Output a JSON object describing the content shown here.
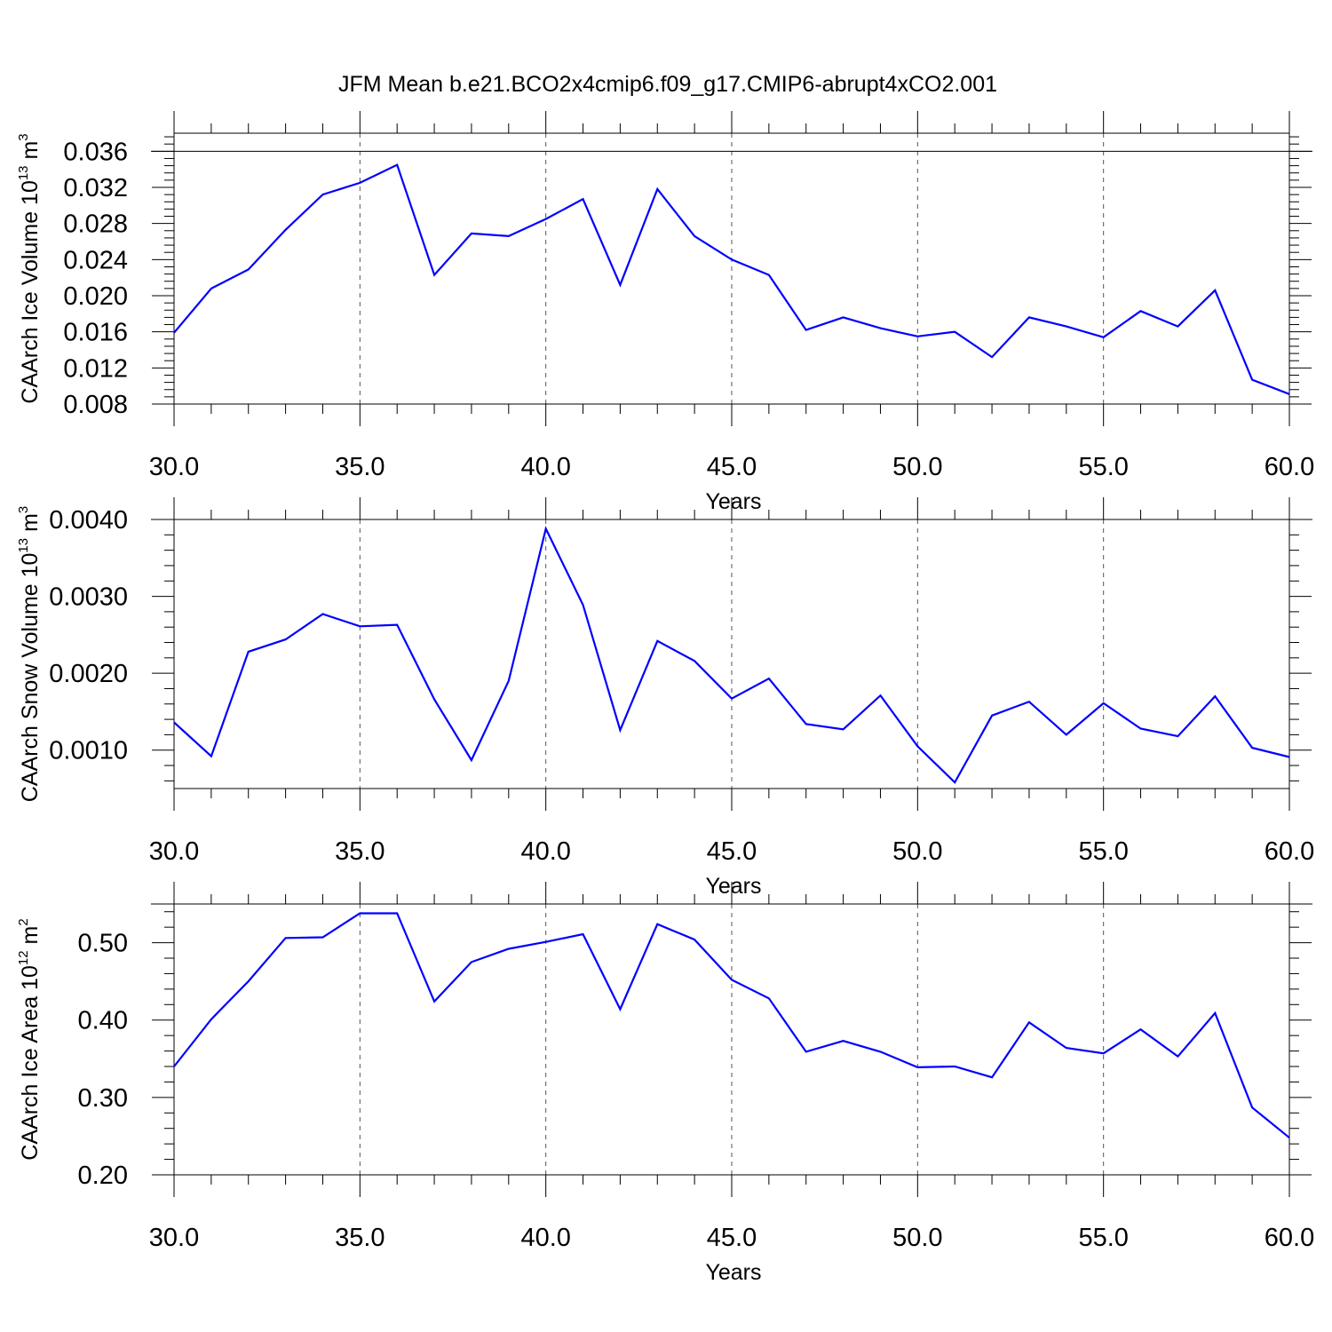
{
  "figure": {
    "title": "JFM Mean b.e21.BCO2x4cmip6.f09_g17.CMIP6-abrupt4xCO2.001"
  },
  "colors": {
    "series": "#0000ff",
    "axes": "#000000",
    "grid": "#555555"
  },
  "chart_data": [
    {
      "type": "line",
      "id": "ice_volume",
      "ylabel": {
        "main": "CAArch Ice Volume 10",
        "exp": "13",
        "unit": " m",
        "unit_exp": "3"
      },
      "xlabel": "Years",
      "xlim": [
        30,
        60
      ],
      "ylim": [
        0.008,
        0.038
      ],
      "x_ticks": [
        30,
        35,
        40,
        45,
        50,
        55,
        60
      ],
      "x_tick_labels": [
        "30.0",
        "35.0",
        "40.0",
        "45.0",
        "50.0",
        "55.0",
        "60.0"
      ],
      "y_ticks": [
        0.008,
        0.012,
        0.016,
        0.02,
        0.024,
        0.028,
        0.032,
        0.036
      ],
      "y_tick_labels": [
        "0.008",
        "0.012",
        "0.016",
        "0.020",
        "0.024",
        "0.028",
        "0.032",
        "0.036"
      ],
      "y_ref_line": 0.036,
      "grid": "vertical dashed at major x ticks",
      "x": [
        30,
        31,
        32,
        33,
        34,
        35,
        36,
        37,
        38,
        39,
        40,
        41,
        42,
        43,
        44,
        45,
        46,
        47,
        48,
        49,
        50,
        51,
        52,
        53,
        54,
        55,
        56,
        57,
        58,
        59,
        60
      ],
      "values": [
        0.0159,
        0.0208,
        0.0229,
        0.0273,
        0.0312,
        0.0325,
        0.0345,
        0.0223,
        0.0269,
        0.0266,
        0.0285,
        0.0307,
        0.0212,
        0.0318,
        0.0266,
        0.024,
        0.0223,
        0.0162,
        0.0176,
        0.0164,
        0.0155,
        0.016,
        0.0132,
        0.0176,
        0.0166,
        0.0154,
        0.0183,
        0.0166,
        0.0206,
        0.0107,
        0.0091
      ]
    },
    {
      "type": "line",
      "id": "snow_volume",
      "ylabel": {
        "main": "CAArch Snow Volume 10",
        "exp": "13",
        "unit": " m",
        "unit_exp": "3"
      },
      "xlabel": "Years",
      "xlim": [
        30,
        60
      ],
      "ylim": [
        0.0005,
        0.004
      ],
      "x_ticks": [
        30,
        35,
        40,
        45,
        50,
        55,
        60
      ],
      "x_tick_labels": [
        "30.0",
        "35.0",
        "40.0",
        "45.0",
        "50.0",
        "55.0",
        "60.0"
      ],
      "y_ticks": [
        0.001,
        0.002,
        0.003,
        0.004
      ],
      "y_tick_labels": [
        "0.0010",
        "0.0020",
        "0.0030",
        "0.0040"
      ],
      "y_ref_line": 0.004,
      "grid": "vertical dashed at major x ticks",
      "x": [
        30,
        31,
        32,
        33,
        34,
        35,
        36,
        37,
        38,
        39,
        40,
        41,
        42,
        43,
        44,
        45,
        46,
        47,
        48,
        49,
        50,
        51,
        52,
        53,
        54,
        55,
        56,
        57,
        58,
        59,
        60
      ],
      "values": [
        0.00136,
        0.00092,
        0.00228,
        0.00244,
        0.00277,
        0.00261,
        0.00263,
        0.00166,
        0.00087,
        0.0019,
        0.00388,
        0.00289,
        0.00126,
        0.00242,
        0.00216,
        0.00167,
        0.00193,
        0.00134,
        0.00127,
        0.00171,
        0.00105,
        0.00058,
        0.00145,
        0.00163,
        0.0012,
        0.00161,
        0.00128,
        0.00118,
        0.0017,
        0.00103,
        0.00091
      ]
    },
    {
      "type": "line",
      "id": "ice_area",
      "ylabel": {
        "main": "CAArch Ice Area 10",
        "exp": "12",
        "unit": " m",
        "unit_exp": "2"
      },
      "xlabel": "Years",
      "xlim": [
        30,
        60
      ],
      "ylim": [
        0.2,
        0.55
      ],
      "x_ticks": [
        30,
        35,
        40,
        45,
        50,
        55,
        60
      ],
      "x_tick_labels": [
        "30.0",
        "35.0",
        "40.0",
        "45.0",
        "50.0",
        "55.0",
        "60.0"
      ],
      "y_ticks": [
        0.2,
        0.3,
        0.4,
        0.5
      ],
      "y_tick_labels": [
        "0.20",
        "0.30",
        "0.40",
        "0.50"
      ],
      "y_ref_line": 0.55,
      "grid": "vertical dashed at major x ticks",
      "x": [
        30,
        31,
        32,
        33,
        34,
        35,
        36,
        37,
        38,
        39,
        40,
        41,
        42,
        43,
        44,
        45,
        46,
        47,
        48,
        49,
        50,
        51,
        52,
        53,
        54,
        55,
        56,
        57,
        58,
        59,
        60
      ],
      "values": [
        0.34,
        0.401,
        0.45,
        0.506,
        0.507,
        0.538,
        0.538,
        0.424,
        0.475,
        0.492,
        0.501,
        0.511,
        0.414,
        0.524,
        0.504,
        0.452,
        0.428,
        0.359,
        0.373,
        0.359,
        0.339,
        0.34,
        0.326,
        0.397,
        0.364,
        0.357,
        0.388,
        0.353,
        0.409,
        0.287,
        0.248
      ]
    }
  ]
}
